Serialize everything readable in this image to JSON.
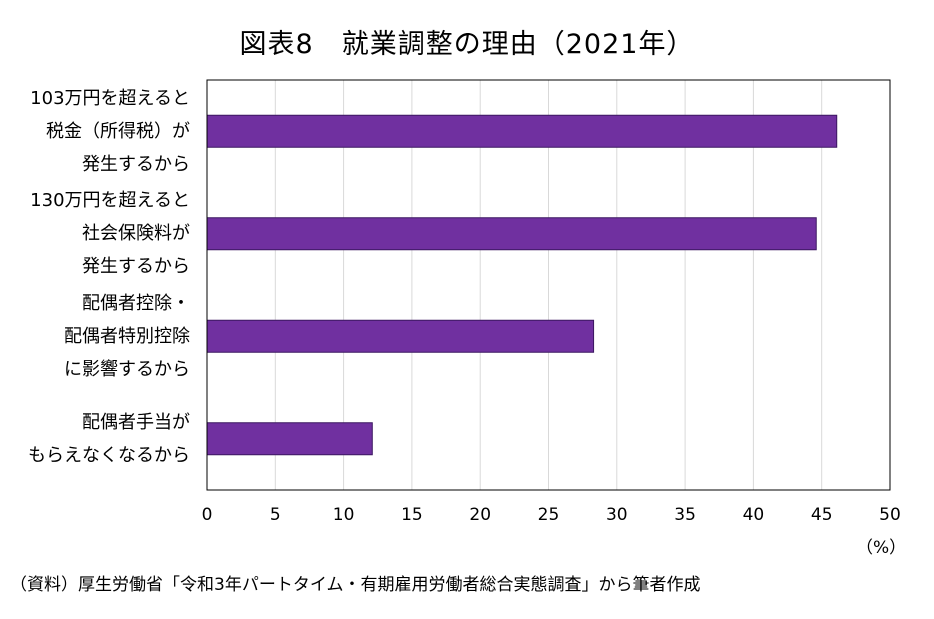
{
  "chart_data": {
    "type": "bar",
    "orientation": "horizontal",
    "title": "図表8　就業調整の理由（2021年）",
    "categories": [
      "103万円を超えると\n税金（所得税）が\n発生するから",
      "130万円を超えると\n社会保険料が\n発生するから",
      "配偶者控除・\n配偶者特別控除\nに影響するから",
      "配偶者手当が\nもらえなくなるから"
    ],
    "values": [
      46.1,
      44.6,
      28.3,
      12.1
    ],
    "xlabel": "（%）",
    "ylabel": "",
    "xlim": [
      0,
      50
    ],
    "ticks": [
      0,
      5,
      10,
      15,
      20,
      25,
      30,
      35,
      40,
      45,
      50
    ],
    "grid": true,
    "bar_color": "#7030a0",
    "source": "（資料）厚生労働省「令和3年パートタイム・有期雇用労働者総合実態調査」から筆者作成"
  }
}
